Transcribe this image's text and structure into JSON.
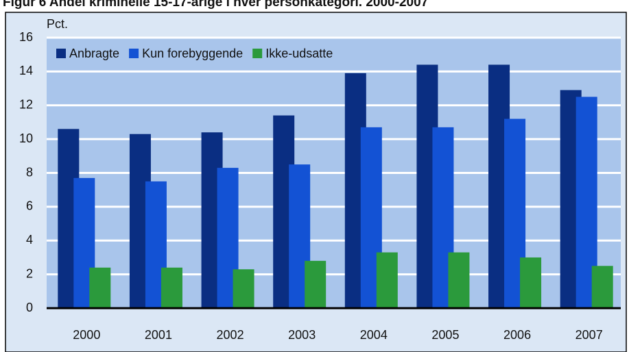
{
  "chart_data": {
    "type": "bar",
    "title": "Figur 6 Andel kriminelle 15-17-årige i hver personkategori. 2000-2007",
    "y_axis_label": "Pct.",
    "categories": [
      "2000",
      "2001",
      "2002",
      "2003",
      "2004",
      "2005",
      "2006",
      "2007"
    ],
    "series": [
      {
        "name": "Anbragte",
        "color": "#0a2e82",
        "values": [
          10.6,
          10.3,
          10.4,
          11.4,
          13.9,
          14.4,
          14.4,
          12.9
        ]
      },
      {
        "name": "Kun forebyggende",
        "color": "#1352d4",
        "values": [
          7.7,
          7.5,
          8.3,
          8.5,
          10.7,
          10.7,
          11.2,
          12.5
        ]
      },
      {
        "name": "Ikke-udsatte",
        "color": "#2b9a3c",
        "values": [
          2.4,
          2.4,
          2.3,
          2.8,
          3.3,
          3.3,
          3.0,
          2.5
        ]
      }
    ],
    "ylim": [
      0,
      16
    ],
    "yticks": [
      0,
      2,
      4,
      6,
      8,
      10,
      12,
      14,
      16
    ],
    "grid": true,
    "legend": "top-left"
  }
}
